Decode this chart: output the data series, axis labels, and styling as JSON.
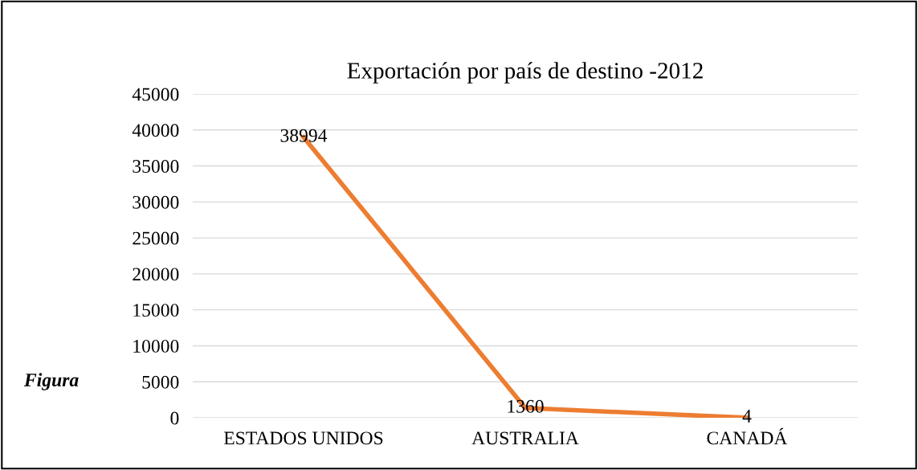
{
  "chart_data": {
    "type": "line",
    "title": "Exportación por país de destino -2012",
    "categories": [
      "ESTADOS UNIDOS",
      "AUSTRALIA",
      "CANADÁ"
    ],
    "series": [
      {
        "color": "#ed7d31",
        "values": [
          38994,
          1360,
          4
        ]
      }
    ],
    "ylim": [
      0,
      45000
    ],
    "yticks": [
      0,
      5000,
      10000,
      15000,
      20000,
      25000,
      30000,
      35000,
      40000,
      45000
    ],
    "grid": "y",
    "data_labels": true,
    "legend": false,
    "marker": "none",
    "line_style": "solid",
    "annotations": [
      "Figura"
    ]
  }
}
